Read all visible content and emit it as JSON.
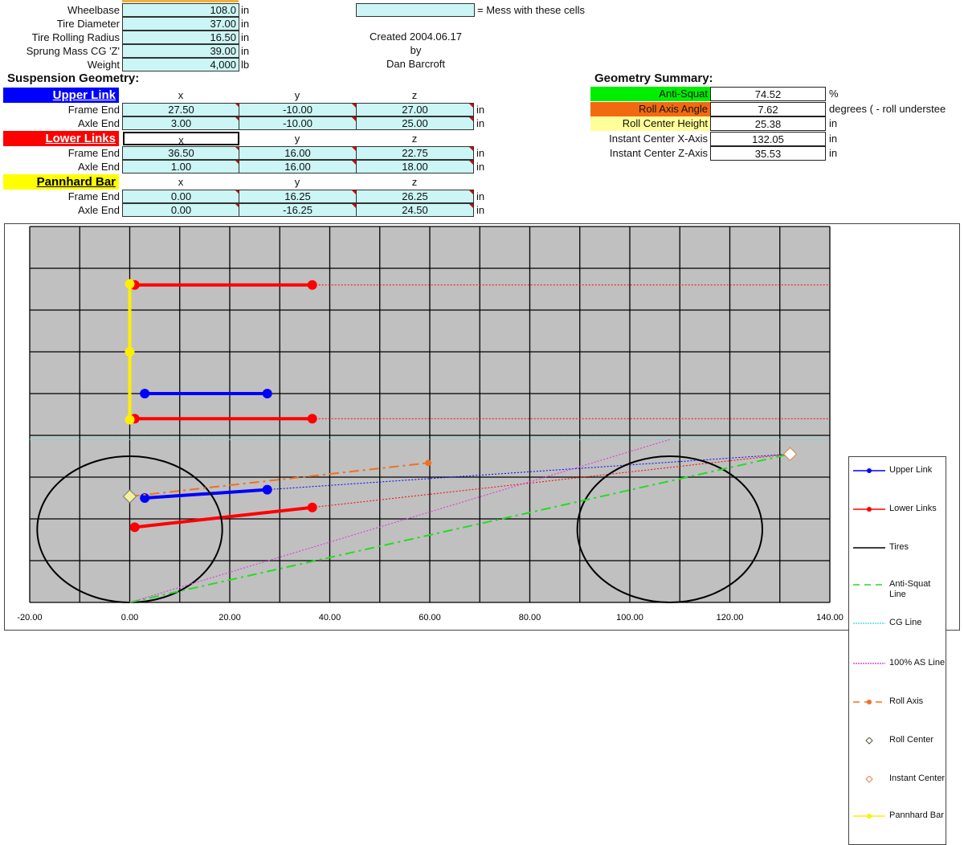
{
  "inputs": [
    {
      "label": "Wheelbase",
      "value": "108.0",
      "unit": "in"
    },
    {
      "label": "Tire Diameter",
      "value": "37.00",
      "unit": "in"
    },
    {
      "label": "Tire Rolling Radius",
      "value": "16.50",
      "unit": "in"
    },
    {
      "label": "Sprung Mass CG 'Z'",
      "value": "39.00",
      "unit": "in"
    },
    {
      "label": "Weight",
      "value": "4,000",
      "unit": "lb"
    }
  ],
  "legend_note": "= Mess with these cells",
  "credits": {
    "created": "Created 2004.06.17",
    "by": "by",
    "author": "Dan Barcroft"
  },
  "suspension": {
    "title": "Suspension Geometry:",
    "groups": [
      {
        "name": "Upper Link",
        "color": "#0000ff",
        "text_color": "#ffffff",
        "cols": [
          "x",
          "y",
          "z"
        ],
        "rows": [
          {
            "label": "Frame End",
            "values": [
              "27.50",
              "-10.00",
              "27.00"
            ],
            "unit": "in"
          },
          {
            "label": "Axle End",
            "values": [
              "3.00",
              "-10.00",
              "25.00"
            ],
            "unit": "in"
          }
        ]
      },
      {
        "name": "Lower Links",
        "color": "#ff0000",
        "text_color": "#ffffff",
        "cols": [
          "x",
          "y",
          "z"
        ],
        "rows": [
          {
            "label": "Frame End",
            "values": [
              "36.50",
              "16.00",
              "22.75"
            ],
            "unit": "in"
          },
          {
            "label": "Axle End",
            "values": [
              "1.00",
              "16.00",
              "18.00"
            ],
            "unit": "in"
          }
        ]
      },
      {
        "name": "Pannhard Bar",
        "color": "#ffff00",
        "text_color": "#000000",
        "cols": [
          "x",
          "y",
          "z"
        ],
        "rows": [
          {
            "label": "Frame End",
            "values": [
              "0.00",
              "16.25",
              "26.25"
            ],
            "unit": "in"
          },
          {
            "label": "Axle End",
            "values": [
              "0.00",
              "-16.25",
              "24.50"
            ],
            "unit": "in"
          }
        ]
      }
    ]
  },
  "summary": {
    "title": "Geometry Summary:",
    "rows": [
      {
        "label": "Anti-Squat",
        "value": "74.52",
        "unit": "%",
        "color": "#00ee00"
      },
      {
        "label": "Roll Axis Angle",
        "value": "7.62",
        "unit": "degrees ( - roll understee",
        "color": "#f26a10"
      },
      {
        "label": "Roll Center Height",
        "value": "25.38",
        "unit": "in",
        "color": "#ffff99"
      },
      {
        "label": "Instant Center X-Axis",
        "value": "132.05",
        "unit": "in",
        "color": ""
      },
      {
        "label": "Instant Center Z-Axis",
        "value": "35.53",
        "unit": "in",
        "color": ""
      }
    ]
  },
  "chart_data": {
    "type": "scatter",
    "xlim": [
      -20,
      140
    ],
    "ylim": [
      0,
      90
    ],
    "x_ticks": [
      "-20.00",
      "0.00",
      "20.00",
      "40.00",
      "60.00",
      "80.00",
      "100.00",
      "120.00",
      "140.00"
    ],
    "grid": true,
    "plot_background": "#c0c0c0",
    "legend_position": "right",
    "series": [
      {
        "name": "Upper Link",
        "color": "#0000ff",
        "style": "solid-markers",
        "segments": [
          [
            [
              3,
              25
            ],
            [
              27.5,
              27
            ]
          ],
          [
            [
              3,
              50
            ],
            [
              27.5,
              50
            ]
          ]
        ]
      },
      {
        "name": "Lower Links",
        "color": "#ff0000",
        "style": "solid-markers",
        "segments": [
          [
            [
              1,
              18
            ],
            [
              36.5,
              22.75
            ]
          ],
          [
            [
              1,
              76
            ],
            [
              36.5,
              76
            ]
          ],
          [
            [
              1,
              44
            ],
            [
              36.5,
              44
            ]
          ]
        ]
      },
      {
        "name": "Tires",
        "color": "#000000",
        "style": "circle",
        "circles": [
          {
            "cx": 0,
            "cz": 17.5,
            "rx": 18.5,
            "rz": 17.5
          },
          {
            "cx": 108,
            "cz": 17.5,
            "rx": 18.5,
            "rz": 17.5
          }
        ]
      },
      {
        "name": "Anti-Squat Line",
        "color": "#22dd22",
        "style": "dashdot",
        "segments": [
          [
            [
              0,
              0
            ],
            [
              132.05,
              35.53
            ]
          ]
        ]
      },
      {
        "name": "CG Line",
        "color": "#55dddd",
        "style": "dotted",
        "segments": [
          [
            [
              -20,
              39
            ],
            [
              140,
              39
            ]
          ]
        ]
      },
      {
        "name": "100% AS Line",
        "color": "#dd44dd",
        "style": "dotted",
        "segments": [
          [
            [
              0,
              0
            ],
            [
              108,
              39
            ]
          ]
        ]
      },
      {
        "name": "Roll Axis",
        "color": "#f07020",
        "style": "dashdot-end-marker",
        "segments": [
          [
            [
              0,
              25.38
            ],
            [
              59.7,
              33.4
            ]
          ]
        ]
      },
      {
        "name": "Roll Center",
        "color": "#f5f0a0",
        "style": "diamond",
        "points": [
          [
            0,
            25.38
          ]
        ]
      },
      {
        "name": "Instant Center",
        "color": "#ffffff",
        "style": "diamond",
        "points": [
          [
            132.05,
            35.53
          ]
        ]
      },
      {
        "name": "Pannhard Bar",
        "color": "#ffee00",
        "style": "solid-markers",
        "segments": [
          [
            [
              0,
              76.25
            ],
            [
              0,
              60
            ],
            [
              0,
              43.75
            ]
          ]
        ]
      }
    ],
    "extensions": [
      {
        "color": "#0000ff",
        "segments": [
          [
            [
              27.5,
              27
            ],
            [
              132.05,
              35.53
            ]
          ]
        ]
      },
      {
        "color": "#ff0000",
        "segments": [
          [
            [
              36.5,
              22.75
            ],
            [
              132.05,
              35.53
            ]
          ],
          [
            [
              36.5,
              76
            ],
            [
              140,
              76
            ]
          ],
          [
            [
              36.5,
              44
            ],
            [
              140,
              44
            ]
          ]
        ]
      }
    ]
  }
}
